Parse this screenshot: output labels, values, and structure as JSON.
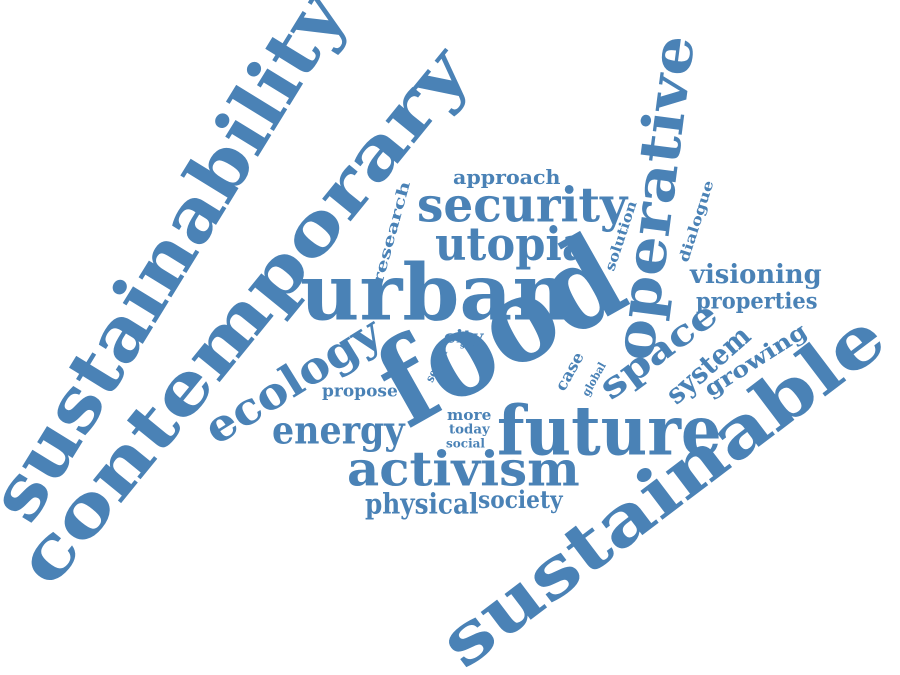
{
  "word_cloud": {
    "color": "#4a82b6",
    "words": [
      {
        "id": "sustainability",
        "text": "sustainability"
      },
      {
        "id": "contemporary",
        "text": "contemporary"
      },
      {
        "id": "sustainable",
        "text": "sustainable"
      },
      {
        "id": "food",
        "text": "food"
      },
      {
        "id": "urban",
        "text": "urban"
      },
      {
        "id": "operative",
        "text": "operative"
      },
      {
        "id": "future",
        "text": "future"
      },
      {
        "id": "activism",
        "text": "activism"
      },
      {
        "id": "security",
        "text": "security"
      },
      {
        "id": "utopia",
        "text": "utopia"
      },
      {
        "id": "ecology",
        "text": "ecology"
      },
      {
        "id": "energy",
        "text": "energy"
      },
      {
        "id": "space",
        "text": "space"
      },
      {
        "id": "system",
        "text": "system"
      },
      {
        "id": "physical",
        "text": "physical"
      },
      {
        "id": "society",
        "text": "society"
      },
      {
        "id": "visioning",
        "text": "visioning"
      },
      {
        "id": "properties",
        "text": "properties"
      },
      {
        "id": "growing",
        "text": "growing"
      },
      {
        "id": "approach",
        "text": "approach"
      },
      {
        "id": "research",
        "text": "research"
      },
      {
        "id": "solution",
        "text": "solution"
      },
      {
        "id": "dialogue",
        "text": "dialogue"
      },
      {
        "id": "city",
        "text": "city"
      },
      {
        "id": "propose",
        "text": "propose"
      },
      {
        "id": "sector",
        "text": "sector"
      },
      {
        "id": "self",
        "text": "self"
      },
      {
        "id": "case",
        "text": "case"
      },
      {
        "id": "global",
        "text": "global"
      },
      {
        "id": "more",
        "text": "more"
      },
      {
        "id": "today",
        "text": "today"
      },
      {
        "id": "social",
        "text": "social"
      }
    ]
  }
}
